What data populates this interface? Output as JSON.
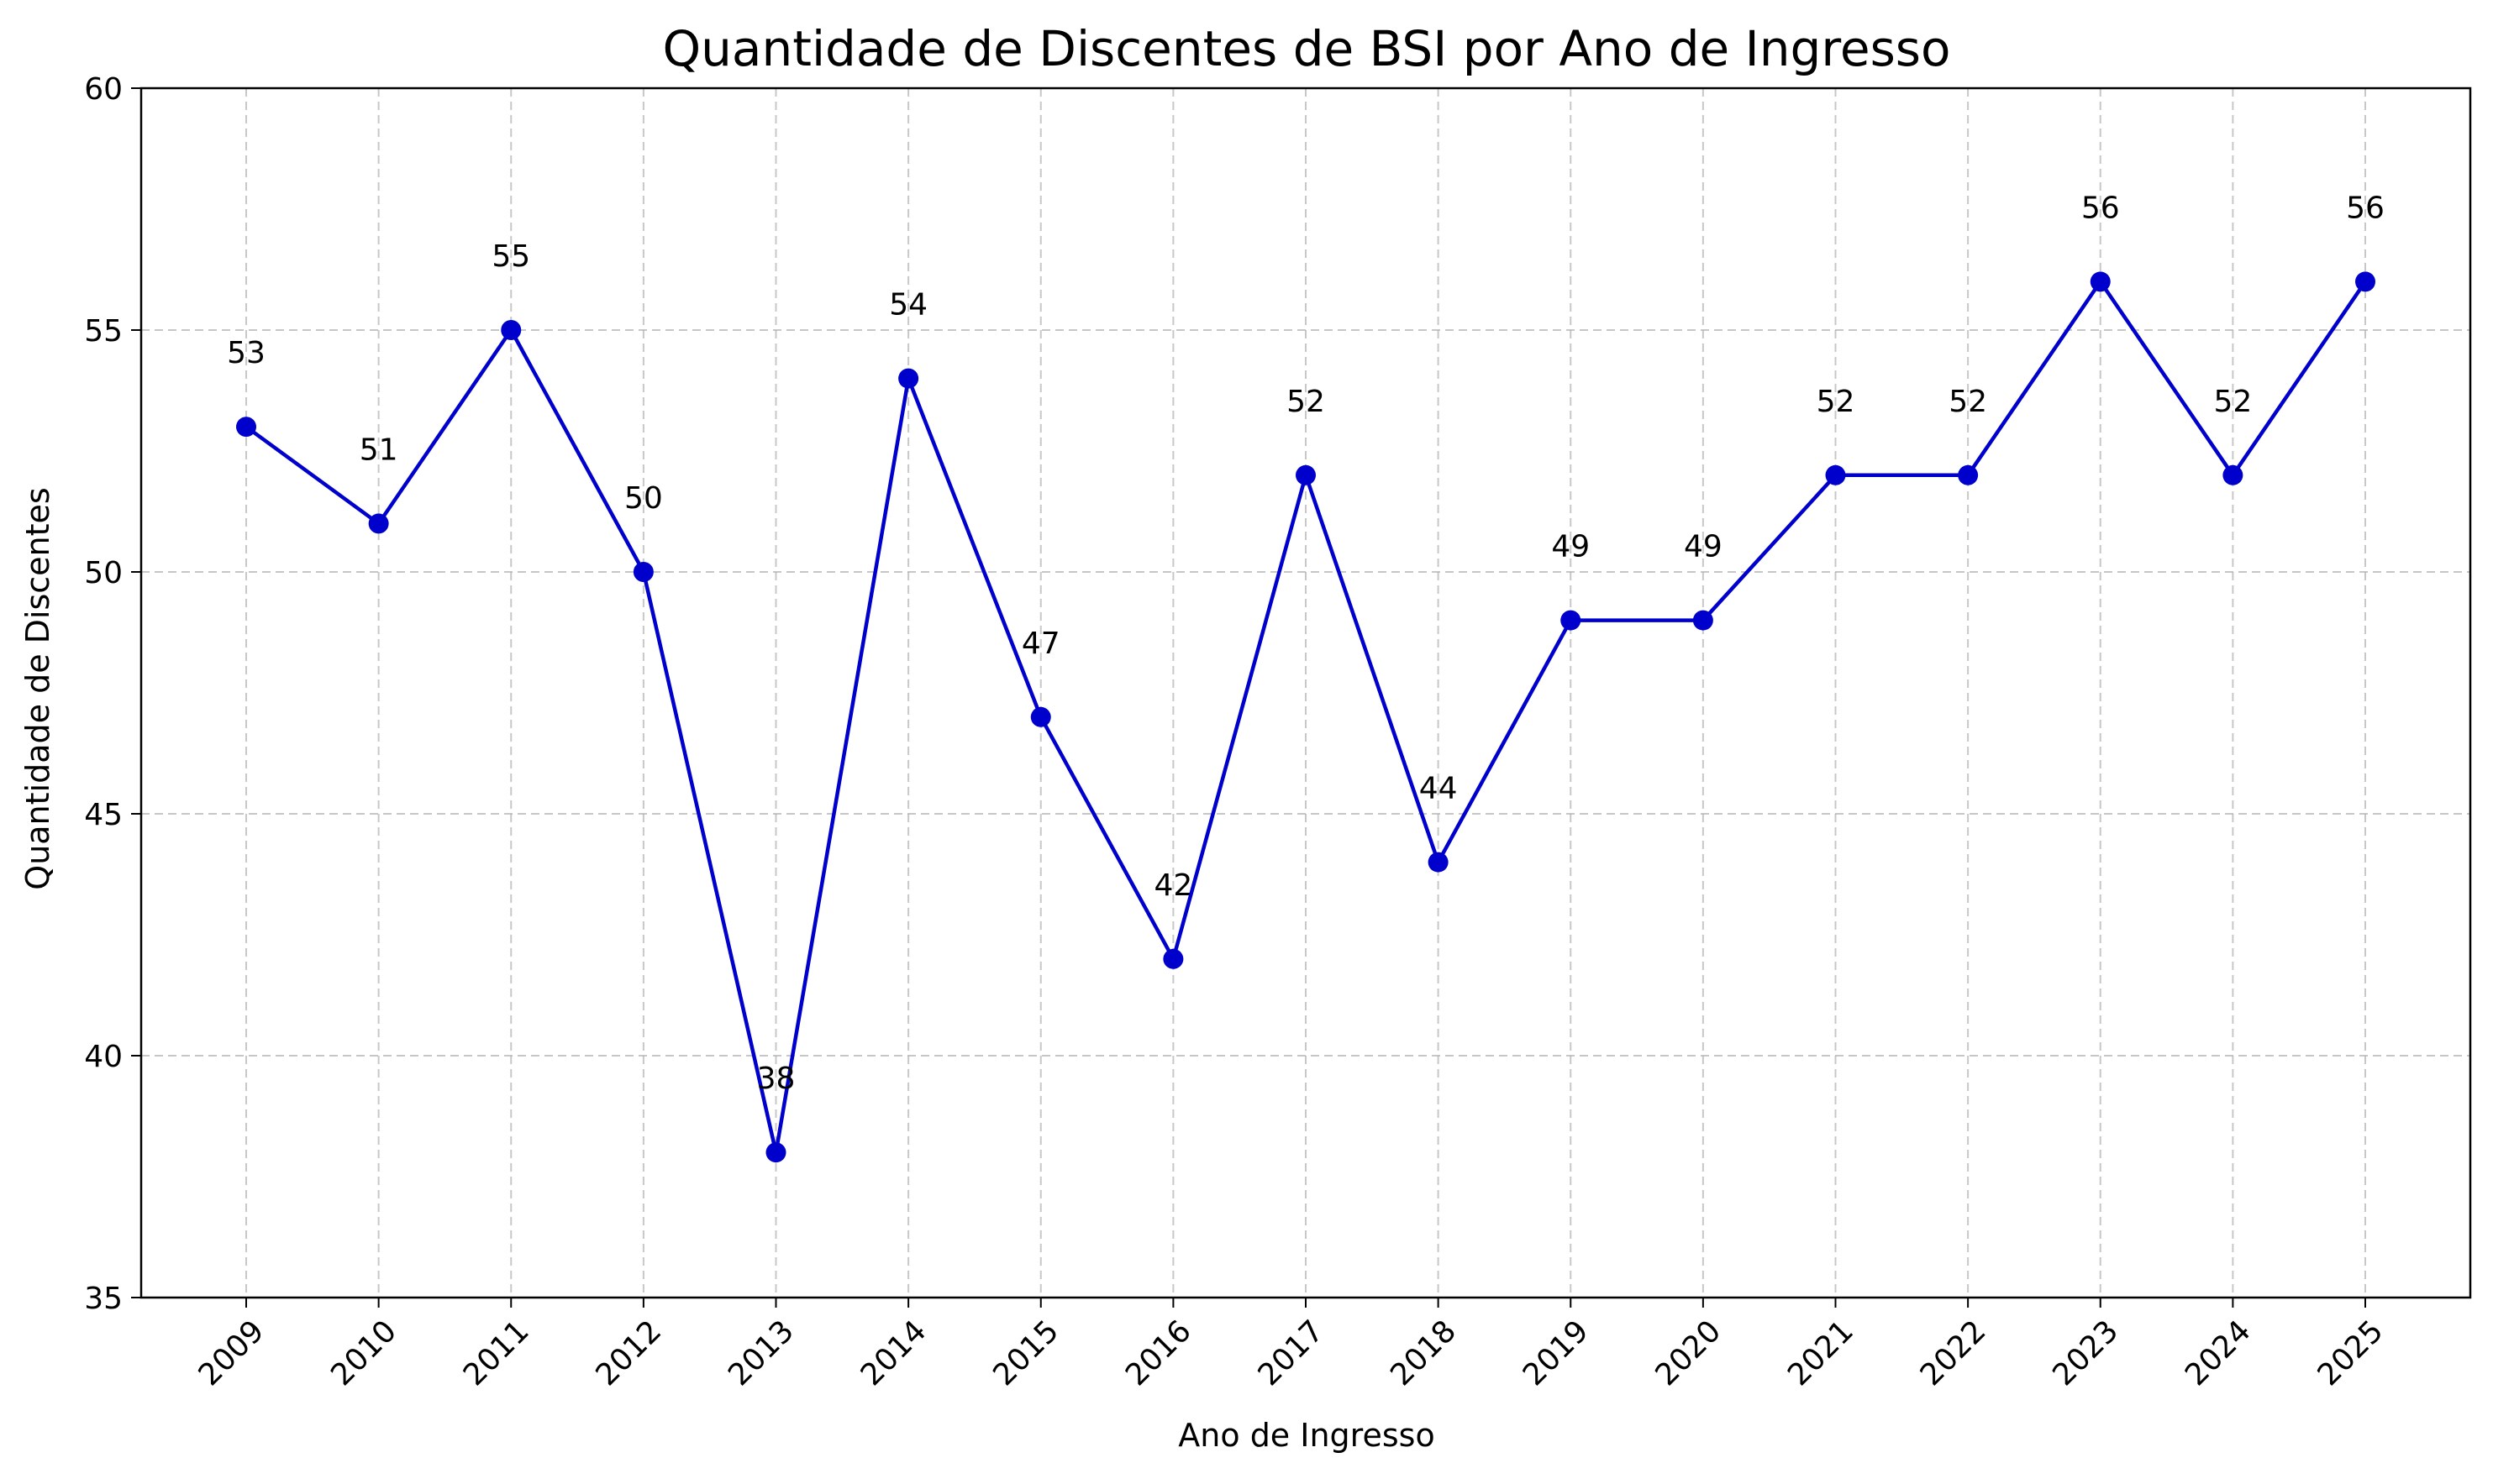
{
  "chart_data": {
    "type": "line",
    "title": "Quantidade de Discentes de BSI por Ano de Ingresso",
    "xlabel": "Ano de Ingresso",
    "ylabel": "Quantidade de Discentes",
    "categories": [
      "2009",
      "2010",
      "2011",
      "2012",
      "2013",
      "2014",
      "2015",
      "2016",
      "2017",
      "2018",
      "2019",
      "2020",
      "2021",
      "2022",
      "2023",
      "2024",
      "2025"
    ],
    "series": [
      {
        "values": [
          53,
          51,
          55,
          50,
          38,
          54,
          47,
          42,
          52,
          44,
          49,
          49,
          52,
          52,
          56,
          52,
          56
        ]
      }
    ],
    "data_labels": [
      "53",
      "51",
      "55",
      "50",
      "38",
      "54",
      "47",
      "42",
      "52",
      "44",
      "49",
      "49",
      "52",
      "52",
      "56",
      "52",
      "56"
    ],
    "ylim": [
      35,
      60
    ],
    "yticks": [
      35,
      40,
      45,
      50,
      55,
      60
    ],
    "ytick_labels": [
      "35",
      "40",
      "45",
      "50",
      "55",
      "60"
    ],
    "grid": true,
    "line_color": "#0000CD",
    "marker": "circle",
    "xtick_rotation_deg": 45
  }
}
